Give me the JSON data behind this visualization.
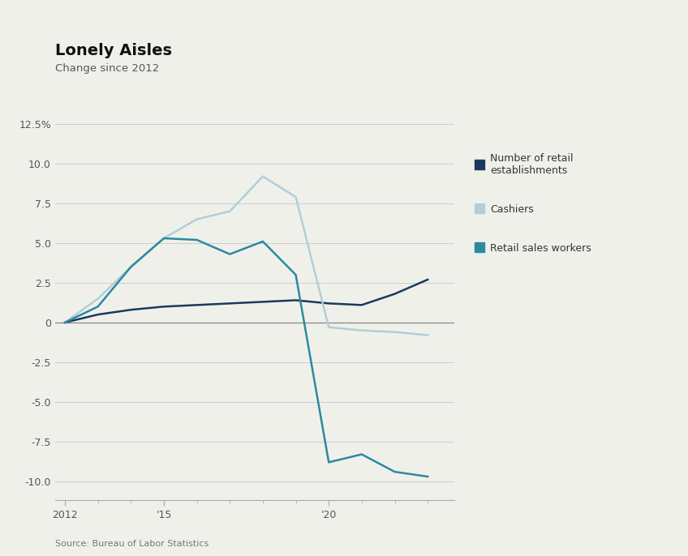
{
  "title": "Lonely Aisles",
  "subtitle": "Change since 2012",
  "source": "Source: Bureau of Labor Statistics",
  "bg_color": "#f0f0eb",
  "plot_bg_color": "#f0f0eb",
  "retail_establishments": {
    "x": [
      2012,
      2013,
      2014,
      2015,
      2016,
      2017,
      2018,
      2019,
      2020,
      2021,
      2022,
      2023
    ],
    "y": [
      0,
      0.5,
      0.8,
      1.0,
      1.1,
      1.2,
      1.3,
      1.4,
      1.2,
      1.1,
      1.8,
      2.7
    ],
    "color": "#1a3a5c",
    "label": "Number of retail\nestablishments",
    "linewidth": 1.8
  },
  "cashiers": {
    "x": [
      2012,
      2013,
      2014,
      2015,
      2016,
      2017,
      2018,
      2019,
      2020,
      2021,
      2022,
      2023
    ],
    "y": [
      0,
      1.5,
      3.5,
      5.3,
      6.5,
      7.0,
      9.2,
      7.9,
      -0.3,
      -0.5,
      -0.6,
      -0.8
    ],
    "color": "#b0cfd8",
    "label": "Cashiers",
    "linewidth": 1.8
  },
  "retail_sales_workers": {
    "x": [
      2012,
      2013,
      2014,
      2015,
      2016,
      2017,
      2018,
      2019,
      2020,
      2021,
      2022,
      2023
    ],
    "y": [
      0,
      1.0,
      3.5,
      5.3,
      5.2,
      4.3,
      5.1,
      3.0,
      -8.8,
      -8.3,
      -9.4,
      -9.7
    ],
    "color": "#2a8a9f",
    "label": "Retail sales workers",
    "linewidth": 1.8
  },
  "xlim": [
    2011.7,
    2023.8
  ],
  "ylim": [
    -11.2,
    14.0
  ],
  "yticks": [
    -10.0,
    -7.5,
    -5.0,
    -2.5,
    0.0,
    2.5,
    5.0,
    7.5,
    10.0,
    12.5
  ],
  "ytick_labels": [
    "-10.0",
    "-7.5",
    "-5.0",
    "-2.5",
    "0",
    "2.5",
    "5.0",
    "7.5",
    "10.0",
    "12.5%"
  ],
  "xticks": [
    2012,
    2015,
    2020
  ],
  "xtick_labels": [
    "2012",
    "'15",
    "'20"
  ]
}
